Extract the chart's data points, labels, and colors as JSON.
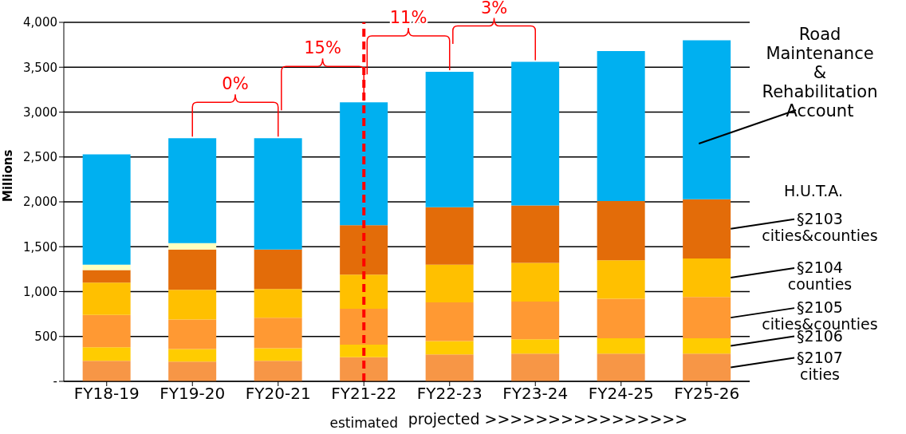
{
  "chart_data": {
    "type": "bar",
    "stacked": true,
    "ylabel": "Millions",
    "categories": [
      "FY18-19",
      "FY19-20",
      "FY20-21",
      "FY21-22",
      "FY22-23",
      "FY23-24",
      "FY24-25",
      "FY25-26"
    ],
    "series": [
      {
        "name": "§2107 cities",
        "color": "#f79646",
        "values": [
          230,
          220,
          230,
          270,
          300,
          310,
          310,
          310
        ]
      },
      {
        "name": "§2106",
        "color": "#ffcc00",
        "values": [
          150,
          140,
          140,
          140,
          150,
          160,
          170,
          170
        ]
      },
      {
        "name": "§2105 cities&counties",
        "color": "#ff9933",
        "values": [
          360,
          330,
          340,
          400,
          430,
          420,
          440,
          460
        ]
      },
      {
        "name": "§2104 counties",
        "color": "#ffc000",
        "values": [
          360,
          330,
          320,
          380,
          420,
          430,
          430,
          430
        ]
      },
      {
        "name": "§2103 cities&counties",
        "color": "#e36c09",
        "values": [
          140,
          450,
          440,
          550,
          640,
          640,
          660,
          660
        ]
      },
      {
        "color": "#ffffc0",
        "values": [
          60,
          70,
          0,
          0,
          0,
          0,
          0,
          0
        ]
      },
      {
        "name": "Road Maintenance & Rehabilitation Account",
        "color": "#00b0f0",
        "values": [
          1230,
          1170,
          1240,
          1370,
          1510,
          1600,
          1670,
          1770
        ]
      }
    ],
    "ylim": [
      0,
      4000
    ],
    "yticks": [
      {
        "value": 0,
        "label": "-"
      },
      {
        "value": 500,
        "label": "500"
      },
      {
        "value": 1000,
        "label": "1,000"
      },
      {
        "value": 1500,
        "label": "1,500"
      },
      {
        "value": 2000,
        "label": "2,000"
      },
      {
        "value": 2500,
        "label": "2,500"
      },
      {
        "value": 3000,
        "label": "3,000"
      },
      {
        "value": 3500,
        "label": "3,500"
      },
      {
        "value": 4000,
        "label": "4,000"
      }
    ],
    "grid": "y",
    "legend": false,
    "ref_lines": [
      {
        "axis": "x",
        "value": "FY21-22",
        "color": "#ff0000",
        "line_style": "dashed"
      }
    ],
    "annotations": [
      "0%",
      "15%",
      "11%",
      "3%",
      "H.U.T.A.",
      "estimated",
      "projected >>>>>>>>>>>>>>>>"
    ]
  }
}
